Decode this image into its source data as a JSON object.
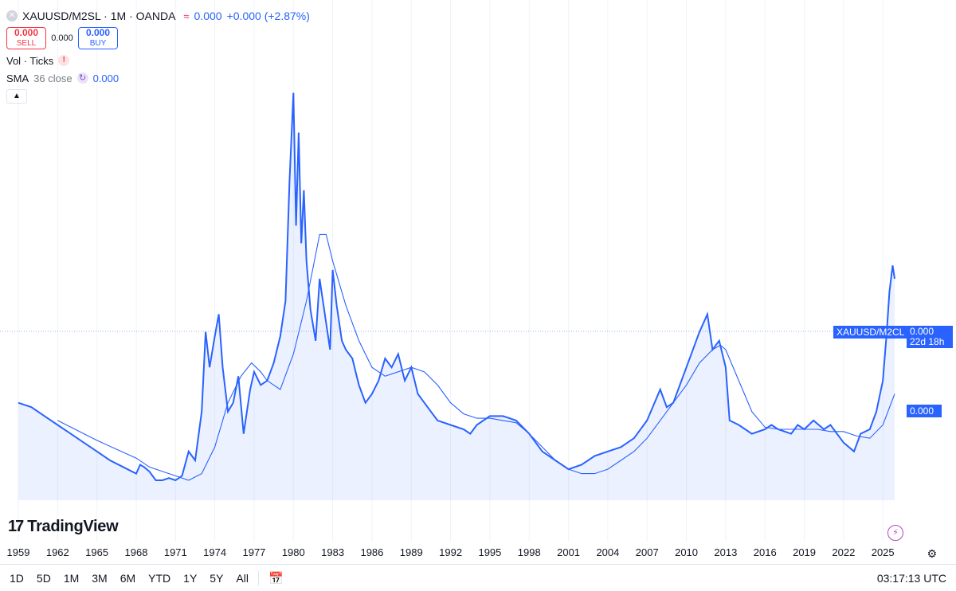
{
  "legend": {
    "symbol": "XAUUSD/M2SL · 1M · OANDA",
    "value": "0.000",
    "change": "+0.000 (+2.87%)",
    "sell_price": "0.000",
    "sell_label": "SELL",
    "spread": "0.000",
    "buy_price": "0.000",
    "buy_label": "BUY",
    "vol_label": "Vol · Ticks",
    "sma_label": "SMA",
    "sma_params": "36 close",
    "sma_value": "0.000"
  },
  "price_axis": {
    "symbol_tag": "XAUUSD/M2CL",
    "last_value": "0.000",
    "countdown": "22d 18h",
    "sma_value": "0.000"
  },
  "logo": {
    "text": "TradingView"
  },
  "bottom_bar": {
    "ranges": [
      "1D",
      "5D",
      "1M",
      "3M",
      "6M",
      "YTD",
      "1Y",
      "5Y",
      "All"
    ],
    "clock": "03:17:13 UTC"
  },
  "colors": {
    "line": "#2962ff",
    "sell": "#f23645",
    "buy": "#2962ff"
  },
  "chart_data": {
    "type": "area",
    "x_tick_labels": [
      "1959",
      "1962",
      "1965",
      "1968",
      "1971",
      "1974",
      "1977",
      "1980",
      "1983",
      "1986",
      "1989",
      "1992",
      "1995",
      "1998",
      "2001",
      "2004",
      "2007",
      "2010",
      "2013",
      "2016",
      "2019",
      "2022",
      "2025"
    ],
    "x_range": [
      1959.0,
      2025.9
    ],
    "y_range": [
      0,
      100
    ],
    "y_note": "relative scale (price axis values not shown in screenshot)",
    "series": [
      {
        "name": "XAUUSD/M2SL",
        "x": [
          1959.0,
          1960.0,
          1961.0,
          1962.0,
          1963.0,
          1964.0,
          1965.0,
          1966.0,
          1967.0,
          1968.0,
          1968.3,
          1968.6,
          1969.0,
          1969.5,
          1970.0,
          1970.5,
          1971.0,
          1971.5,
          1972.0,
          1972.5,
          1973.0,
          1973.3,
          1973.6,
          1974.0,
          1974.3,
          1974.6,
          1975.0,
          1975.4,
          1975.8,
          1976.2,
          1976.7,
          1977.0,
          1977.5,
          1978.0,
          1978.5,
          1979.0,
          1979.4,
          1979.7,
          1980.0,
          1980.2,
          1980.4,
          1980.6,
          1980.8,
          1981.0,
          1981.3,
          1981.7,
          1982.0,
          1982.5,
          1982.8,
          1983.0,
          1983.3,
          1983.7,
          1984.0,
          1984.5,
          1985.0,
          1985.5,
          1986.0,
          1986.5,
          1987.0,
          1987.5,
          1988.0,
          1988.5,
          1989.0,
          1989.5,
          1990.0,
          1990.5,
          1991.0,
          1992.0,
          1993.0,
          1993.5,
          1994.0,
          1995.0,
          1996.0,
          1997.0,
          1998.0,
          1999.0,
          2000.0,
          2001.0,
          2002.0,
          2003.0,
          2004.0,
          2005.0,
          2006.0,
          2007.0,
          2008.0,
          2008.5,
          2009.0,
          2010.0,
          2011.0,
          2011.6,
          2012.0,
          2012.5,
          2013.0,
          2013.3,
          2014.0,
          2015.0,
          2016.0,
          2016.5,
          2017.0,
          2018.0,
          2018.5,
          2019.0,
          2019.7,
          2020.5,
          2021.0,
          2022.0,
          2022.8,
          2023.3,
          2024.0,
          2024.5,
          2025.0,
          2025.3,
          2025.5,
          2025.75,
          2025.9
        ],
        "values": [
          22,
          21,
          19,
          17,
          15,
          13,
          11,
          9,
          7.5,
          6,
          8,
          7.5,
          6.5,
          4.5,
          4.5,
          5,
          4.5,
          5.5,
          11,
          9,
          20,
          38,
          30,
          37,
          42,
          30,
          20,
          22,
          28,
          15,
          25,
          29,
          26,
          27,
          31,
          37,
          45,
          72,
          92,
          62,
          83,
          58,
          70,
          54,
          43,
          36,
          50,
          40,
          34,
          52,
          44,
          36,
          34,
          32,
          26,
          22,
          24,
          27,
          32,
          30,
          33,
          27,
          30,
          24,
          22,
          20,
          18,
          17,
          16,
          15,
          17,
          19,
          19,
          18,
          15,
          11,
          9,
          7,
          8,
          10,
          11,
          12,
          14,
          18,
          25,
          21,
          22,
          30,
          38,
          42,
          34,
          36,
          30,
          18,
          17,
          15,
          16,
          17,
          16,
          15,
          17,
          16,
          18,
          16,
          17,
          13,
          11,
          15,
          16,
          20,
          27,
          38,
          47,
          53,
          50
        ]
      },
      {
        "name": "SMA 36 close",
        "x": [
          1962.0,
          1965.0,
          1968.0,
          1969.0,
          1970.0,
          1971.0,
          1972.0,
          1973.0,
          1974.0,
          1975.0,
          1976.0,
          1976.8,
          1977.5,
          1978.0,
          1979.0,
          1980.0,
          1981.0,
          1982.0,
          1982.5,
          1983.0,
          1984.0,
          1985.0,
          1986.0,
          1987.0,
          1988.0,
          1989.0,
          1990.0,
          1991.0,
          1992.0,
          1993.0,
          1994.0,
          1995.0,
          1996.0,
          1997.0,
          1998.0,
          1999.0,
          2000.0,
          2001.0,
          2002.0,
          2003.0,
          2004.0,
          2005.0,
          2006.0,
          2007.0,
          2008.0,
          2009.0,
          2010.0,
          2011.0,
          2012.0,
          2012.6,
          2013.0,
          2014.0,
          2015.0,
          2016.0,
          2017.0,
          2018.0,
          2019.0,
          2020.0,
          2021.0,
          2022.0,
          2023.0,
          2024.0,
          2025.0,
          2025.9
        ],
        "values": [
          18,
          13.5,
          9.5,
          7.5,
          6.5,
          5.5,
          4.5,
          6,
          12,
          22,
          28,
          31,
          29,
          27,
          25,
          33,
          45,
          60,
          60,
          54,
          44,
          36,
          30,
          28,
          29,
          30,
          29,
          26,
          22,
          19.5,
          18.5,
          18.5,
          18,
          17.5,
          15,
          12,
          9,
          7,
          6,
          6,
          7,
          9,
          11,
          14,
          18,
          22,
          26,
          31,
          34,
          35,
          34,
          27,
          20,
          16.5,
          16,
          16,
          16,
          16,
          15.5,
          15.5,
          14.5,
          14,
          17,
          24
        ]
      }
    ]
  }
}
